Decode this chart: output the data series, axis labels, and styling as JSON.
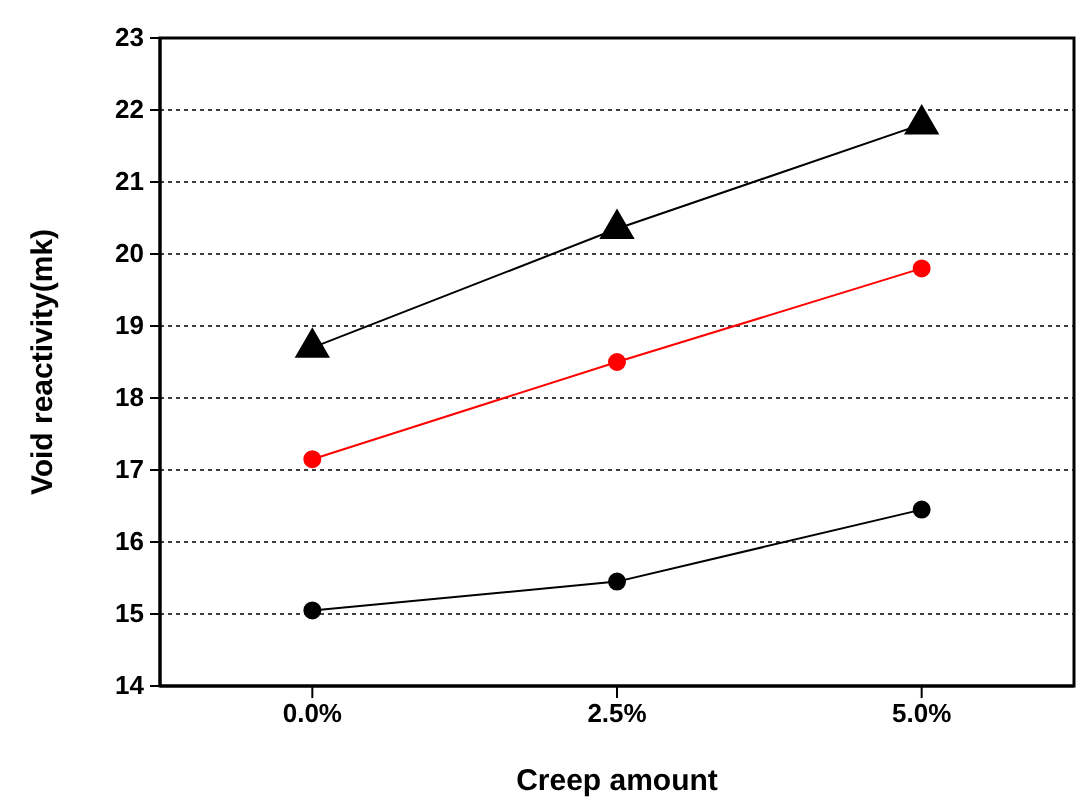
{
  "chart_data": {
    "type": "line",
    "xlabel": "Creep amount",
    "ylabel": "Void reactivity(mk)",
    "categories": [
      "0.0%",
      "2.5%",
      "5.0%"
    ],
    "series": [
      {
        "color": "#000000",
        "marker": "triangle",
        "values": [
          18.7,
          20.35,
          21.8
        ]
      },
      {
        "color": "#ff0000",
        "marker": "circle",
        "values": [
          17.15,
          18.5,
          19.8
        ]
      },
      {
        "color": "#000000",
        "marker": "circle",
        "values": [
          15.05,
          15.45,
          16.45
        ]
      }
    ],
    "ylim": [
      14,
      23
    ],
    "yticks": [
      14,
      15,
      16,
      17,
      18,
      19,
      20,
      21,
      22,
      23
    ],
    "grid": "y"
  }
}
